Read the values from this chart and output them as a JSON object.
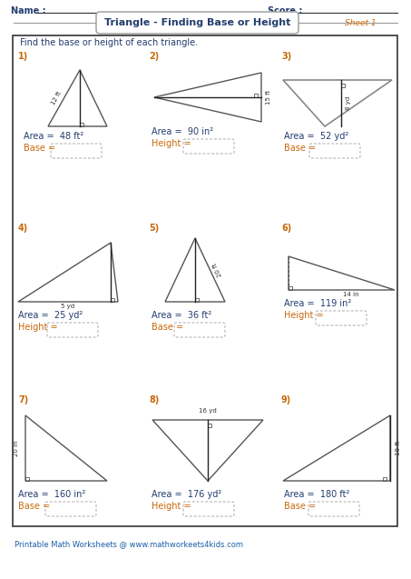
{
  "title": "Triangle - Finding Base or Height",
  "sheet": "Sheet 1",
  "name_label": "Name :",
  "score_label": "Score :",
  "instruction": "Find the base or height of each triangle.",
  "footer": "Printable Math Worksheets @ www.mathworkeets4kids.com",
  "problems": [
    {
      "num": "1)",
      "area_text": "Area =  48 ft²",
      "answer_label": "Base =",
      "measure": "12 ft"
    },
    {
      "num": "2)",
      "area_text": "Area =  90 in²",
      "answer_label": "Height =",
      "measure": "15 ft"
    },
    {
      "num": "3)",
      "area_text": "Area =  52 yd²",
      "answer_label": "Base =",
      "measure": "8 yd"
    },
    {
      "num": "4)",
      "area_text": "Area =  25 yd²",
      "answer_label": "Height =",
      "measure": "5 yd"
    },
    {
      "num": "5)",
      "area_text": "Area =  36 ft²",
      "answer_label": "Base =",
      "measure": "20 ft"
    },
    {
      "num": "6)",
      "area_text": "Area =  119 in²",
      "answer_label": "Height =",
      "measure": "14 in"
    },
    {
      "num": "7)",
      "area_text": "Area =  160 in²",
      "answer_label": "Base =",
      "measure": "20 in"
    },
    {
      "num": "8)",
      "area_text": "Area =  176 yd²",
      "answer_label": "Height =",
      "measure": "16 yd"
    },
    {
      "num": "9)",
      "area_text": "Area =  180 ft²",
      "answer_label": "Base =",
      "measure": "18 ft"
    }
  ],
  "colors": {
    "dark_blue": "#233d6e",
    "orange": "#c8680a",
    "tri_gray": "#666666",
    "text_dark": "#233d6e",
    "answer_color": "#c8680a",
    "num_color": "#c8680a",
    "box_border": "#aaaaaa",
    "bg": "#ffffff"
  }
}
